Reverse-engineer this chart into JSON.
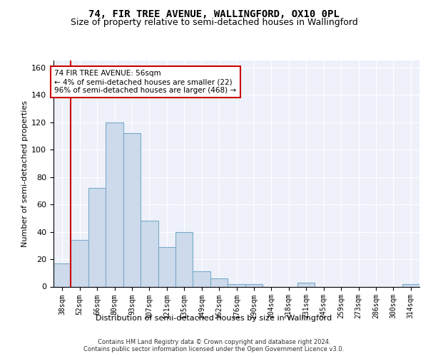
{
  "title1": "74, FIR TREE AVENUE, WALLINGFORD, OX10 0PL",
  "title2": "Size of property relative to semi-detached houses in Wallingford",
  "xlabel": "Distribution of semi-detached houses by size in Wallingford",
  "ylabel": "Number of semi-detached properties",
  "footnote": "Contains HM Land Registry data © Crown copyright and database right 2024.\nContains public sector information licensed under the Open Government Licence v3.0.",
  "categories": [
    "38sqm",
    "52sqm",
    "66sqm",
    "80sqm",
    "93sqm",
    "107sqm",
    "121sqm",
    "135sqm",
    "149sqm",
    "162sqm",
    "176sqm",
    "190sqm",
    "204sqm",
    "218sqm",
    "231sqm",
    "245sqm",
    "259sqm",
    "273sqm",
    "286sqm",
    "300sqm",
    "314sqm"
  ],
  "values": [
    17,
    34,
    72,
    120,
    112,
    48,
    29,
    40,
    11,
    6,
    2,
    2,
    0,
    0,
    3,
    0,
    0,
    0,
    0,
    0,
    2
  ],
  "bar_color": "#ccdaec",
  "bar_edge_color": "#7aaac8",
  "red_line_x": 0.5,
  "annotation_text": "74 FIR TREE AVENUE: 56sqm\n← 4% of semi-detached houses are smaller (22)\n96% of semi-detached houses are larger (468) →",
  "ylim": [
    0,
    165
  ],
  "yticks": [
    0,
    20,
    40,
    60,
    80,
    100,
    120,
    140,
    160
  ],
  "background_color": "#eef1fa",
  "grid_color": "#ffffff",
  "title1_fontsize": 10,
  "title2_fontsize": 9,
  "ylabel_fontsize": 8,
  "xlabel_fontsize": 8,
  "tick_fontsize": 7,
  "annot_fontsize": 7.5,
  "footnote_fontsize": 6
}
